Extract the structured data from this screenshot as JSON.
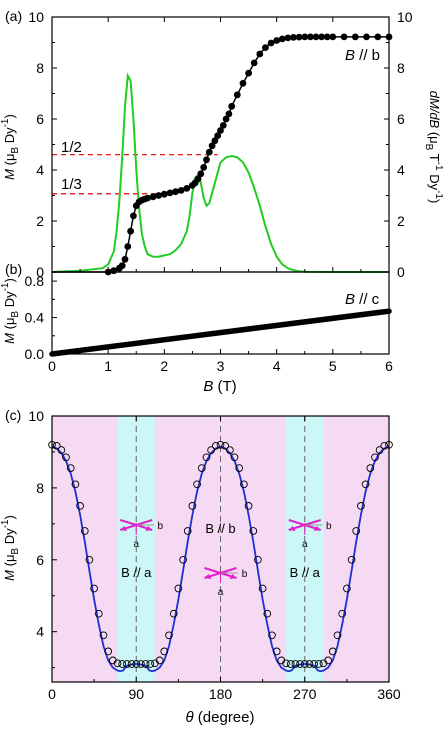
{
  "panels": [
    {
      "panel_label": "(a)",
      "chart_data": {
        "type": "line",
        "title": "",
        "xlim": [
          0,
          6
        ],
        "xticks": [
          0,
          1,
          2,
          3,
          4,
          5,
          6
        ],
        "ylim": [
          0,
          10
        ],
        "yticks": [
          0,
          2,
          4,
          6,
          8,
          10
        ],
        "ylabel": "M (μB Dy-1)",
        "y2lim": [
          0,
          10
        ],
        "y2ticks": [
          0,
          2,
          4,
          6,
          8,
          10
        ],
        "y2label": "dM/dB (μB T-1 Dy-1)",
        "annotations": [
          "B // b",
          "1/2",
          "1/3"
        ],
        "series": [
          {
            "name": "",
            "axis": "left",
            "color": "#000000",
            "marker": "circle",
            "x": [
              1.0,
              1.1,
              1.2,
              1.25,
              1.3,
              1.35,
              1.4,
              1.45,
              1.5,
              1.55,
              1.6,
              1.65,
              1.7,
              1.8,
              1.9,
              2.0,
              2.1,
              2.2,
              2.3,
              2.4,
              2.5,
              2.55,
              2.6,
              2.65,
              2.7,
              2.75,
              2.8,
              2.85,
              2.9,
              2.95,
              3.0,
              3.05,
              3.1,
              3.15,
              3.2,
              3.3,
              3.4,
              3.5,
              3.6,
              3.7,
              3.8,
              3.9,
              4.0,
              4.1,
              4.2,
              4.3,
              4.4,
              4.5,
              4.6,
              4.7,
              4.8,
              4.9,
              5.0,
              5.2,
              5.4,
              5.6,
              5.8,
              6.0
            ],
            "y": [
              0.0,
              0.05,
              0.15,
              0.25,
              0.5,
              1.0,
              1.6,
              2.2,
              2.6,
              2.75,
              2.82,
              2.86,
              2.9,
              2.95,
              3.0,
              3.05,
              3.1,
              3.15,
              3.2,
              3.28,
              3.4,
              3.5,
              3.65,
              3.85,
              4.1,
              4.4,
              4.7,
              4.95,
              5.15,
              5.35,
              5.55,
              5.75,
              6.0,
              6.2,
              6.5,
              6.95,
              7.4,
              7.8,
              8.2,
              8.55,
              8.8,
              8.98,
              9.08,
              9.14,
              9.18,
              9.2,
              9.21,
              9.22,
              9.22,
              9.22,
              9.22,
              9.22,
              9.22,
              9.22,
              9.22,
              9.22,
              9.22,
              9.22
            ]
          },
          {
            "name": "",
            "axis": "right",
            "color": "#22cc22",
            "marker": "none",
            "x": [
              0.0,
              0.5,
              0.9,
              1.0,
              1.1,
              1.15,
              1.2,
              1.25,
              1.3,
              1.35,
              1.4,
              1.45,
              1.5,
              1.55,
              1.6,
              1.65,
              1.7,
              1.8,
              1.9,
              2.0,
              2.1,
              2.2,
              2.3,
              2.4,
              2.45,
              2.5,
              2.55,
              2.6,
              2.65,
              2.7,
              2.75,
              2.8,
              2.85,
              2.9,
              2.95,
              3.0,
              3.1,
              3.2,
              3.3,
              3.4,
              3.5,
              3.6,
              3.7,
              3.8,
              3.9,
              4.0,
              4.1,
              4.2,
              4.3,
              4.4,
              4.5,
              5.0,
              5.5,
              6.0
            ],
            "y": [
              0.0,
              0.05,
              0.15,
              0.3,
              0.8,
              1.6,
              2.8,
              4.5,
              6.5,
              7.7,
              7.5,
              6.0,
              4.0,
              2.5,
              1.5,
              1.0,
              0.7,
              0.6,
              0.6,
              0.65,
              0.7,
              0.85,
              1.1,
              1.6,
              2.2,
              3.1,
              3.7,
              3.8,
              3.5,
              2.9,
              2.6,
              2.7,
              3.1,
              3.5,
              3.9,
              4.3,
              4.5,
              4.55,
              4.5,
              4.3,
              3.9,
              3.3,
              2.6,
              1.8,
              1.1,
              0.6,
              0.3,
              0.15,
              0.07,
              0.03,
              0.01,
              0.0,
              0.0,
              0.0
            ]
          }
        ]
      }
    },
    {
      "panel_label": "(b)",
      "chart_data": {
        "type": "line",
        "title": "",
        "xlabel": "B (T)",
        "xlim": [
          0,
          6
        ],
        "xticks": [
          0,
          1,
          2,
          3,
          4,
          5,
          6
        ],
        "ylim": [
          0,
          0.9
        ],
        "yticks": [
          0.0,
          0.4,
          0.8
        ],
        "yticklabels": [
          "0.0",
          "0.4",
          "0.8"
        ],
        "ylabel": "M (μB Dy-1)",
        "annotations": [
          "B // c"
        ],
        "series": [
          {
            "name": "",
            "color": "#000000",
            "marker": "dense-dots",
            "x": [
              0,
              6
            ],
            "y": [
              0.0,
              0.47
            ]
          }
        ]
      }
    },
    {
      "panel_label": "(c)",
      "chart_data": {
        "type": "line",
        "title": "",
        "xlabel": "θ (degree)",
        "xlim": [
          0,
          360
        ],
        "xticks": [
          0,
          90,
          180,
          270,
          360
        ],
        "ylim": [
          2.6,
          10
        ],
        "yticks": [
          4,
          6,
          8,
          10
        ],
        "ylabel": "M (μB Dy-1)",
        "shaded_regions": [
          {
            "x": [
              70,
              110
            ],
            "color": "#ccf7f7"
          },
          {
            "x": [
              250,
              290
            ],
            "color": "#ccf7f7"
          },
          {
            "x": [
              0,
              70
            ],
            "color": "#f6d9f2"
          },
          {
            "x": [
              110,
              250
            ],
            "color": "#f6d9f2"
          },
          {
            "x": [
              290,
              360
            ],
            "color": "#f6d9f2"
          }
        ],
        "vlines": [
          90,
          180,
          270
        ],
        "annotations": [
          "B // a",
          "B // b",
          "B // a",
          "a",
          "b",
          "a",
          "b",
          "a",
          "b"
        ],
        "series": [
          {
            "name": "",
            "color": "#000000",
            "marker": "open-circle",
            "x": [
              0,
              5,
              10,
              15,
              20,
              25,
              30,
              35,
              40,
              45,
              50,
              55,
              60,
              65,
              70,
              75,
              80,
              85,
              90,
              95,
              100,
              105,
              110,
              115,
              120,
              125,
              130,
              135,
              140,
              145,
              150,
              155,
              160,
              165,
              170,
              175,
              180,
              185,
              190,
              195,
              200,
              205,
              210,
              215,
              220,
              225,
              230,
              235,
              240,
              245,
              250,
              255,
              260,
              265,
              270,
              275,
              280,
              285,
              290,
              295,
              300,
              305,
              310,
              315,
              320,
              325,
              330,
              335,
              340,
              345,
              350,
              355,
              360
            ],
            "y": [
              9.2,
              9.17,
              9.05,
              8.85,
              8.55,
              8.1,
              7.5,
              6.8,
              6.0,
              5.2,
              4.5,
              3.9,
              3.45,
              3.2,
              3.12,
              3.1,
              3.1,
              3.1,
              3.1,
              3.1,
              3.1,
              3.1,
              3.12,
              3.2,
              3.45,
              3.9,
              4.5,
              5.2,
              6.0,
              6.8,
              7.5,
              8.1,
              8.55,
              8.85,
              9.05,
              9.17,
              9.2,
              9.17,
              9.05,
              8.85,
              8.55,
              8.1,
              7.5,
              6.8,
              6.0,
              5.2,
              4.5,
              3.9,
              3.45,
              3.2,
              3.12,
              3.1,
              3.1,
              3.1,
              3.1,
              3.1,
              3.1,
              3.1,
              3.12,
              3.2,
              3.45,
              3.9,
              4.5,
              5.2,
              6.0,
              6.8,
              7.5,
              8.1,
              8.55,
              8.85,
              9.05,
              9.17,
              9.2
            ]
          },
          {
            "name": "",
            "color": "#1f2fd0",
            "marker": "none",
            "x": [
              0,
              5,
              10,
              15,
              20,
              25,
              30,
              35,
              40,
              45,
              50,
              55,
              60,
              65,
              70,
              73,
              76,
              80,
              84,
              88,
              90,
              92,
              96,
              100,
              104,
              107,
              110,
              115,
              120,
              125,
              130,
              135,
              140,
              145,
              150,
              155,
              160,
              165,
              170,
              175,
              180,
              185,
              190,
              195,
              200,
              205,
              210,
              215,
              220,
              225,
              230,
              235,
              240,
              245,
              250,
              253,
              256,
              260,
              264,
              268,
              270,
              272,
              276,
              280,
              284,
              287,
              290,
              295,
              300,
              305,
              310,
              315,
              320,
              325,
              330,
              335,
              340,
              345,
              350,
              355,
              360
            ],
            "y": [
              9.15,
              9.1,
              8.97,
              8.75,
              8.4,
              7.9,
              7.25,
              6.5,
              5.7,
              4.9,
              4.2,
              3.6,
              3.2,
              3.0,
              2.92,
              2.9,
              2.92,
              3.05,
              3.08,
              3.1,
              3.1,
              3.1,
              3.08,
              3.05,
              2.92,
              2.9,
              2.92,
              3.0,
              3.2,
              3.6,
              4.2,
              4.9,
              5.7,
              6.5,
              7.25,
              7.9,
              8.4,
              8.75,
              8.97,
              9.1,
              9.15,
              9.1,
              8.97,
              8.75,
              8.4,
              7.9,
              7.25,
              6.5,
              5.7,
              4.9,
              4.2,
              3.6,
              3.2,
              3.0,
              2.92,
              2.9,
              2.92,
              3.05,
              3.08,
              3.1,
              3.1,
              3.1,
              3.08,
              3.05,
              2.92,
              2.9,
              2.92,
              3.0,
              3.2,
              3.6,
              4.2,
              4.9,
              5.7,
              6.5,
              7.25,
              7.9,
              8.4,
              8.75,
              8.97,
              9.1,
              9.15
            ]
          }
        ]
      }
    }
  ]
}
